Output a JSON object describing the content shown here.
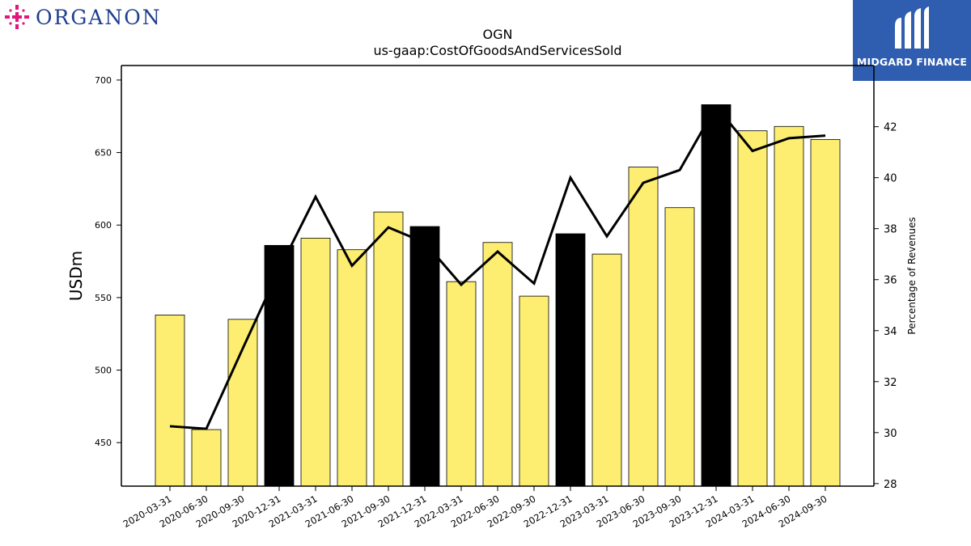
{
  "brand": {
    "left_logo_text": "ORGANON",
    "right_logo_text": "MIDGARD FINANCE",
    "organon_pink": "#e0177f",
    "organon_blue": "#1f3f8f",
    "midgard_blue": "#2f5db0"
  },
  "chart_data": {
    "type": "bar",
    "title": "OGN",
    "subtitle": "us-gaap:CostOfGoodsAndServicesSold",
    "ylabel": "USDm",
    "y2label": "Percentage of Revenues",
    "ylim": [
      420,
      710
    ],
    "y2lim": [
      27.9,
      44.4
    ],
    "yticks": [
      450,
      500,
      550,
      600,
      650,
      700
    ],
    "y2ticks": [
      28,
      30,
      32,
      34,
      36,
      38,
      40,
      42
    ],
    "categories": [
      "2020-03-31",
      "2020-06-30",
      "2020-09-30",
      "2020-12-31",
      "2021-03-31",
      "2021-06-30",
      "2021-09-30",
      "2021-12-31",
      "2022-03-31",
      "2022-06-30",
      "2022-09-30",
      "2022-12-31",
      "2023-03-31",
      "2023-06-30",
      "2023-09-30",
      "2023-12-31",
      "2024-03-31",
      "2024-06-30",
      "2024-09-30"
    ],
    "series": [
      {
        "kind": "bar",
        "values": [
          538,
          459,
          535,
          586,
          591,
          583,
          609,
          599,
          561,
          588,
          551,
          594,
          580,
          640,
          612,
          683,
          665,
          668,
          659
        ],
        "highlight": [
          false,
          false,
          false,
          true,
          false,
          false,
          false,
          true,
          false,
          false,
          false,
          true,
          false,
          false,
          false,
          true,
          false,
          false,
          false
        ],
        "color": "#fded70",
        "highlight_color": "#000000"
      },
      {
        "kind": "line",
        "axis": "right",
        "values": [
          30.25,
          30.15,
          33.3,
          36.4,
          39.25,
          36.55,
          38.05,
          37.45,
          35.8,
          37.1,
          35.85,
          40.0,
          37.7,
          39.8,
          40.3,
          42.8,
          41.05,
          41.55,
          41.65
        ],
        "color": "#000000"
      }
    ],
    "grid": false,
    "legend": "none"
  }
}
